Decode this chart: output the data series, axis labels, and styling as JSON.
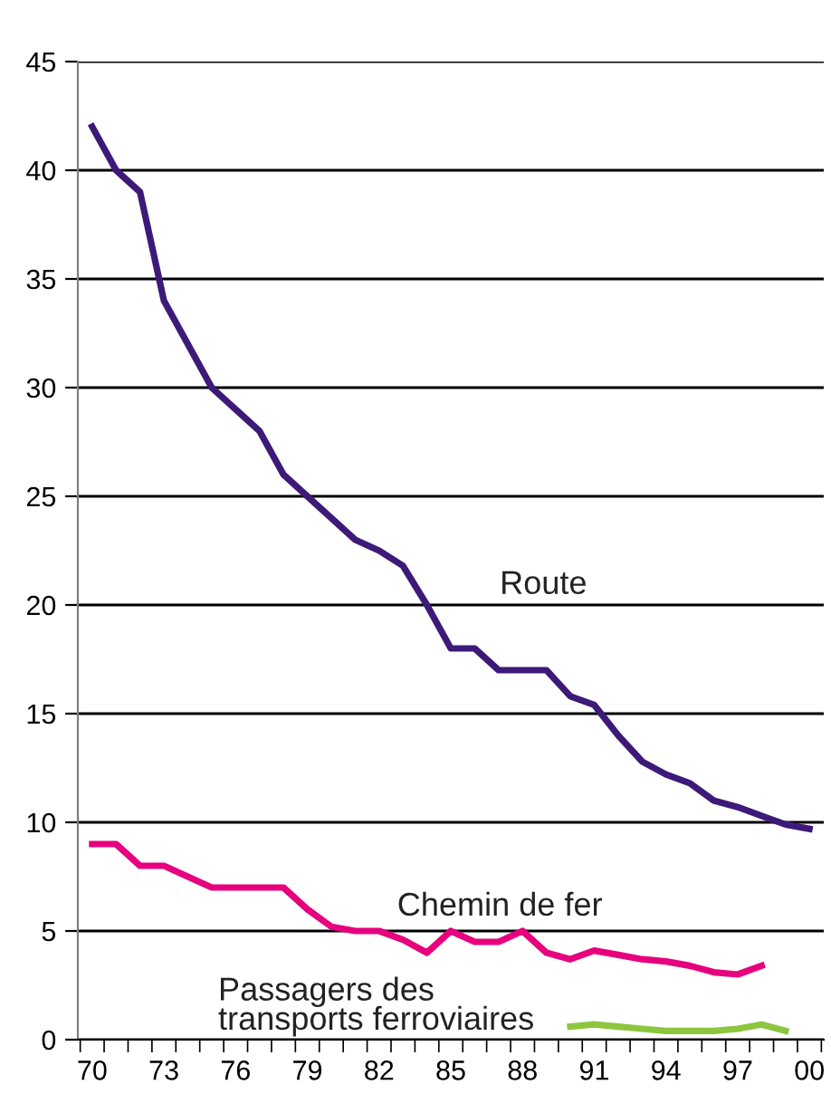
{
  "chart_data": {
    "type": "line",
    "categories": [
      "70",
      null,
      null,
      "73",
      null,
      null,
      "76",
      null,
      null,
      "79",
      null,
      null,
      "82",
      null,
      null,
      "85",
      null,
      null,
      "88",
      null,
      null,
      "91",
      null,
      null,
      "94",
      null,
      null,
      "97",
      null,
      null,
      "00"
    ],
    "series": [
      {
        "name": "Route",
        "color": "#3d1a78",
        "values": [
          42,
          40,
          39,
          34,
          32,
          30,
          29,
          28,
          26,
          25,
          24,
          23,
          22.5,
          21.8,
          20,
          18,
          18,
          17,
          17,
          17,
          15.8,
          15.4,
          14,
          12.8,
          12.2,
          11.8,
          11,
          10.7,
          10.3,
          9.9,
          9.7
        ]
      },
      {
        "name": "Chemin de fer",
        "color": "#e6007e",
        "values": [
          9,
          9,
          8,
          8,
          7.5,
          7,
          7,
          7,
          7,
          6,
          5.2,
          5,
          5,
          4.6,
          4,
          5,
          4.5,
          4.5,
          5,
          4,
          3.7,
          4.1,
          3.9,
          3.7,
          3.6,
          3.4,
          3.1,
          3,
          3.4,
          null,
          null
        ]
      },
      {
        "name": "Passagers des\ntransports ferroviaires",
        "color": "#8cc63f",
        "values": [
          null,
          null,
          null,
          null,
          null,
          null,
          null,
          null,
          null,
          null,
          null,
          null,
          null,
          null,
          null,
          null,
          null,
          null,
          null,
          null,
          0.6,
          0.7,
          0.6,
          0.5,
          0.4,
          0.4,
          0.4,
          0.5,
          0.7,
          0.4,
          null
        ]
      }
    ],
    "ylim": [
      0,
      45
    ],
    "yticks": [
      0,
      5,
      10,
      15,
      20,
      25,
      30,
      35,
      40,
      45
    ],
    "grid": "y",
    "legend": false,
    "marker": "none",
    "line_style": "solid"
  }
}
